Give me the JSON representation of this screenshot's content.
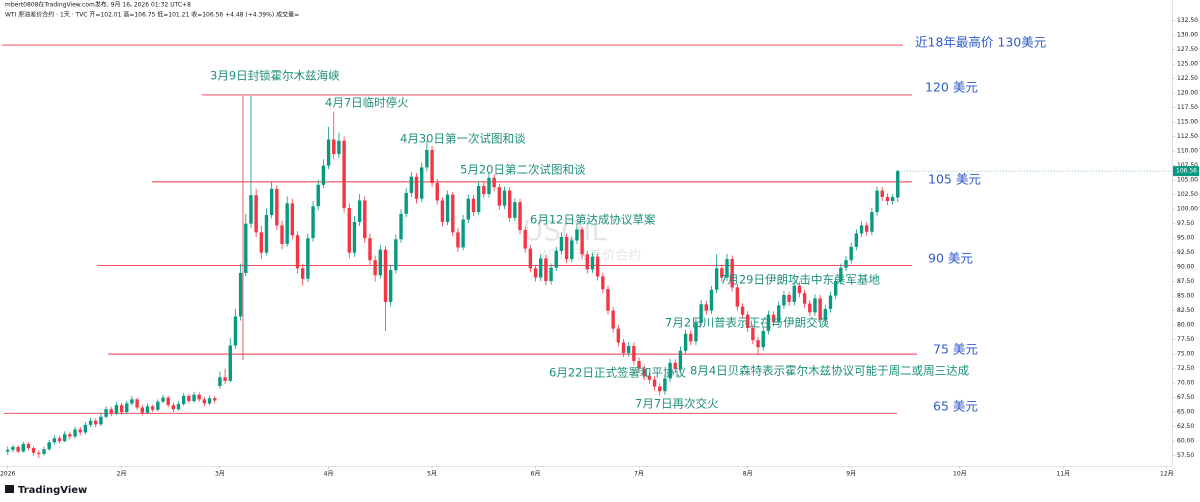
{
  "chart_data": {
    "type": "candlestick",
    "header_line1": "mbert0808在TradingView.com发布, 9月 16, 2026 01:32 UTC+8",
    "header_line2": "WTI 原油差价合约 · 1天 · TVC  开=102.01 高=106.75 低=101.21 收=106.56 +4.48 (+4.39%)  成交量=",
    "watermark_symbol": "USOIL",
    "watermark_name": "WTI原油差价合约",
    "brand": "TradingView",
    "up_color": "#089981",
    "down_color": "#f23645",
    "grid": false,
    "xlim": [
      -1.5,
      225
    ],
    "xticks": [
      {
        "value": 0,
        "label": "2026"
      },
      {
        "value": 22,
        "label": "2月"
      },
      {
        "value": 41,
        "label": "3月"
      },
      {
        "value": 62,
        "label": "4月"
      },
      {
        "value": 82,
        "label": "5月"
      },
      {
        "value": 102,
        "label": "6月"
      },
      {
        "value": 122,
        "label": "7月"
      },
      {
        "value": 143,
        "label": "8月"
      },
      {
        "value": 163,
        "label": "9月"
      },
      {
        "value": 184,
        "label": "10月"
      },
      {
        "value": 204,
        "label": "11月"
      },
      {
        "value": 224,
        "label": "12月"
      }
    ],
    "ylim": [
      56.4,
      135.2
    ],
    "yticks": [
      {
        "value": 57.5,
        "label": "57.50"
      },
      {
        "value": 60,
        "label": "60.00"
      },
      {
        "value": 62.5,
        "label": "62.50"
      },
      {
        "value": 65,
        "label": "65.00"
      },
      {
        "value": 67.5,
        "label": "67.50"
      },
      {
        "value": 70,
        "label": "70.00"
      },
      {
        "value": 72.5,
        "label": "72.50"
      },
      {
        "value": 75,
        "label": "75.00"
      },
      {
        "value": 77.5,
        "label": "77.50"
      },
      {
        "value": 80,
        "label": "80.00"
      },
      {
        "value": 82.5,
        "label": "82.50"
      },
      {
        "value": 85,
        "label": "85.00"
      },
      {
        "value": 87.5,
        "label": "87.50"
      },
      {
        "value": 90,
        "label": "90.00"
      },
      {
        "value": 92.5,
        "label": "92.50"
      },
      {
        "value": 95,
        "label": "95.00"
      },
      {
        "value": 97.5,
        "label": "97.50"
      },
      {
        "value": 100,
        "label": "100.00"
      },
      {
        "value": 102.5,
        "label": "102.50"
      },
      {
        "value": 105,
        "label": "105.00"
      },
      {
        "value": 107.5,
        "label": "107.50"
      },
      {
        "value": 110,
        "label": "110.00"
      },
      {
        "value": 112.5,
        "label": "112.50"
      },
      {
        "value": 115,
        "label": "115.00"
      },
      {
        "value": 117.5,
        "label": "117.50"
      },
      {
        "value": 120,
        "label": "120.00"
      },
      {
        "value": 122.5,
        "label": "122.50"
      },
      {
        "value": 125,
        "label": "125.00"
      },
      {
        "value": 127.5,
        "label": "127.50"
      },
      {
        "value": 130,
        "label": "130.00"
      },
      {
        "value": 132.5,
        "label": "132.50"
      }
    ],
    "levels": [
      {
        "value": 128.3,
        "label": "近18年最高价 130美元"
      },
      {
        "value": 119.7,
        "label": "120 美元"
      },
      {
        "value": 104.7,
        "label": "105 美元"
      },
      {
        "value": 90.3,
        "label": "90 美元"
      },
      {
        "value": 75,
        "label": "75 美元"
      },
      {
        "value": 64.8,
        "label": "65 美元"
      }
    ],
    "annotations": [
      "3月9日封锁霍尔木兹海峡",
      "4月7日临时停火",
      "4月30日第一次试图和谈",
      "5月20日第二次试图和谈",
      "6月12日第达成协议草案",
      "7月29日伊朗攻击中东美军基地",
      "7月2日川普表示正在与伊朗交谈",
      "6月22日正式签署和平协议",
      "8月4日贝森特表示霍尔木兹协议可能于周二或周三达成",
      "7月7日再次交火"
    ],
    "ohlc": [
      [
        58.2,
        59.1,
        57.6,
        58.5
      ],
      [
        58.5,
        59.4,
        58.1,
        59
      ],
      [
        59,
        59.3,
        57.9,
        58.2
      ],
      [
        58.2,
        59.9,
        58,
        59.5
      ],
      [
        59.5,
        59.8,
        58.4,
        58.8
      ],
      [
        58.8,
        59.1,
        57.5,
        58
      ],
      [
        58,
        58.4,
        57.1,
        57.8
      ],
      [
        57.8,
        59,
        57.5,
        58.6
      ],
      [
        58.6,
        60.2,
        58.3,
        59.8
      ],
      [
        59.8,
        61,
        59.4,
        60.5
      ],
      [
        60.5,
        60.9,
        59.6,
        60
      ],
      [
        60,
        61.7,
        59.8,
        61.2
      ],
      [
        61.2,
        61.6,
        60.3,
        60.8
      ],
      [
        60.8,
        62.5,
        60.5,
        62
      ],
      [
        62,
        62.4,
        61,
        61.5
      ],
      [
        61.5,
        63.3,
        61.2,
        62.8
      ],
      [
        62.8,
        64,
        62.4,
        63.5
      ],
      [
        63.5,
        63.9,
        62.4,
        62.9
      ],
      [
        62.9,
        64.8,
        62.6,
        64.2
      ],
      [
        64.2,
        66,
        63.9,
        65.5
      ],
      [
        65.5,
        65.9,
        64.3,
        64.8
      ],
      [
        64.8,
        66.8,
        64.5,
        66.2
      ],
      [
        66.2,
        66.6,
        64.6,
        65
      ],
      [
        65,
        67,
        64.7,
        66.5
      ],
      [
        66.5,
        67.8,
        66.1,
        67.2
      ],
      [
        67.2,
        67.5,
        65.4,
        65.8
      ],
      [
        65.8,
        66.2,
        64.4,
        64.9
      ],
      [
        64.9,
        66.5,
        64.6,
        66
      ],
      [
        66,
        66.3,
        65,
        65.4
      ],
      [
        65.4,
        67.2,
        65.1,
        66.8
      ],
      [
        66.8,
        68,
        66.5,
        67.5
      ],
      [
        67.5,
        67.8,
        65.8,
        66.2
      ],
      [
        66.2,
        66.6,
        65,
        65.5
      ],
      [
        65.5,
        66.9,
        65.2,
        66.4
      ],
      [
        66.4,
        68.3,
        66.1,
        67.8
      ],
      [
        67.8,
        68.1,
        66.5,
        66.9
      ],
      [
        66.9,
        68.5,
        66.6,
        68
      ],
      [
        68,
        68.4,
        66.8,
        67.2
      ],
      [
        67.2,
        67.6,
        66,
        66.5
      ],
      [
        66.5,
        67.9,
        66.2,
        67.4
      ],
      [
        67.4,
        67.8,
        66.5,
        67
      ],
      [
        69.5,
        72,
        69,
        71
      ],
      [
        71,
        72.5,
        69.8,
        70.4
      ],
      [
        70.4,
        77.8,
        70.1,
        76.5
      ],
      [
        76.5,
        82.8,
        75.9,
        81.5
      ],
      [
        81.5,
        90.6,
        80.8,
        89
      ],
      [
        89,
        99.2,
        88.5,
        97.5
      ],
      [
        97.5,
        119.5,
        96.8,
        102.4
      ],
      [
        102.4,
        103.5,
        95.2,
        96
      ],
      [
        96,
        97.1,
        91.4,
        92.5
      ],
      [
        92.5,
        100.1,
        92,
        99
      ],
      [
        99,
        104.8,
        98.4,
        103.5
      ],
      [
        103.5,
        104.1,
        96.4,
        97.2
      ],
      [
        97.2,
        98,
        93.1,
        94
      ],
      [
        94,
        102.2,
        93.5,
        101
      ],
      [
        101,
        101.8,
        94.8,
        95.5
      ],
      [
        95.5,
        96.2,
        88.9,
        89.8
      ],
      [
        89.8,
        90.6,
        86.8,
        88
      ],
      [
        88,
        95.8,
        87.4,
        95
      ],
      [
        95,
        101.4,
        94.4,
        100.5
      ],
      [
        100.5,
        105.1,
        99.8,
        104.2
      ],
      [
        104.2,
        108.6,
        103.6,
        107.5
      ],
      [
        107.5,
        114.2,
        106.9,
        112
      ],
      [
        112,
        116.8,
        108.6,
        109.5
      ],
      [
        109.5,
        113.2,
        108.8,
        111.8
      ],
      [
        111.8,
        112.5,
        99.4,
        100.2
      ],
      [
        100.2,
        101,
        91.5,
        92.5
      ],
      [
        92.5,
        98.8,
        91.8,
        97.8
      ],
      [
        97.8,
        102.6,
        97.1,
        101.5
      ],
      [
        101.5,
        102.2,
        94.2,
        95
      ],
      [
        95,
        95.8,
        90.4,
        91.2
      ],
      [
        91.2,
        92,
        87.5,
        88.6
      ],
      [
        88.6,
        93.8,
        88,
        93
      ],
      [
        93,
        93.6,
        79,
        84
      ],
      [
        84,
        90.4,
        83.2,
        89.5
      ],
      [
        89.5,
        95.6,
        88.9,
        94.8
      ],
      [
        94.8,
        100,
        94.2,
        99.2
      ],
      [
        99.2,
        103.6,
        98.6,
        102.8
      ],
      [
        102.8,
        106.4,
        102.1,
        105.6
      ],
      [
        105.6,
        106.2,
        101,
        101.8
      ],
      [
        101.8,
        108,
        101.2,
        107.2
      ],
      [
        107.2,
        111.8,
        106.5,
        110.2
      ],
      [
        110.2,
        110.9,
        103.8,
        104.5
      ],
      [
        104.5,
        105.2,
        100.8,
        101.5
      ],
      [
        101.5,
        102.1,
        97,
        97.8
      ],
      [
        97.8,
        103.2,
        97.2,
        102.5
      ],
      [
        102.5,
        103,
        95.3,
        96
      ],
      [
        96,
        96.7,
        92.6,
        93.4
      ],
      [
        93.4,
        99,
        92.9,
        98.2
      ],
      [
        98.2,
        102.5,
        97.6,
        101.8
      ],
      [
        101.8,
        102.4,
        98.8,
        99.5
      ],
      [
        99.5,
        104.8,
        99,
        104
      ],
      [
        104,
        104.6,
        101.9,
        102.6
      ],
      [
        102.6,
        106.2,
        102,
        105.4
      ],
      [
        105.4,
        106,
        103.1,
        103.8
      ],
      [
        103.8,
        104.4,
        99.9,
        100.6
      ],
      [
        100.6,
        103.9,
        100,
        103.2
      ],
      [
        103.2,
        103.8,
        97.8,
        98.5
      ],
      [
        98.5,
        101.9,
        97.9,
        101.2
      ],
      [
        101.2,
        101.8,
        95.7,
        96.4
      ],
      [
        96.4,
        97,
        92.5,
        93.2
      ],
      [
        93.2,
        93.8,
        89.1,
        89.8
      ],
      [
        89.8,
        90.4,
        87.5,
        88.2
      ],
      [
        88.2,
        92.2,
        87.6,
        91.5
      ],
      [
        91.5,
        92.1,
        86.9,
        87.6
      ],
      [
        87.6,
        90.6,
        87,
        89.9
      ],
      [
        89.9,
        93.5,
        89.3,
        92.8
      ],
      [
        92.8,
        96,
        92.2,
        95.2
      ],
      [
        95.2,
        95.8,
        90.7,
        91.4
      ],
      [
        91.4,
        95.3,
        90.8,
        94.6
      ],
      [
        94.6,
        97.2,
        94,
        96.5
      ],
      [
        96.5,
        97,
        91.5,
        92.2
      ],
      [
        92.2,
        92.8,
        88.9,
        89.6
      ],
      [
        89.6,
        92.5,
        89,
        91.8
      ],
      [
        91.8,
        92.4,
        87.7,
        88.4
      ],
      [
        88.4,
        89,
        85.5,
        86.2
      ],
      [
        86.2,
        86.8,
        81.8,
        82.5
      ],
      [
        82.5,
        83.1,
        78.7,
        79.4
      ],
      [
        79.4,
        80,
        76.3,
        77
      ],
      [
        77,
        77.6,
        74.5,
        75.2
      ],
      [
        75.2,
        77.1,
        74.6,
        76.4
      ],
      [
        76.4,
        77,
        73.1,
        73.8
      ],
      [
        73.8,
        74.4,
        71.8,
        72.5
      ],
      [
        72.5,
        73.1,
        70.5,
        71.2
      ],
      [
        71.2,
        71.8,
        69.9,
        70.6
      ],
      [
        70.6,
        71.2,
        68.7,
        69.4
      ],
      [
        69.4,
        70,
        67.9,
        68.6
      ],
      [
        68.6,
        71.5,
        68,
        70.8
      ],
      [
        70.8,
        74.2,
        70.2,
        73.5
      ],
      [
        73.5,
        74.1,
        71.7,
        72.4
      ],
      [
        72.4,
        76.3,
        71.8,
        75.6
      ],
      [
        75.6,
        79.2,
        75,
        78.5
      ],
      [
        78.5,
        79.1,
        76.5,
        77.2
      ],
      [
        77.2,
        81.1,
        76.6,
        80.4
      ],
      [
        80.4,
        84.3,
        79.8,
        83.6
      ],
      [
        83.6,
        84.2,
        81.8,
        82.5
      ],
      [
        82.5,
        86.8,
        81.9,
        86.1
      ],
      [
        86.1,
        92.2,
        85.5,
        89.8
      ],
      [
        89.8,
        90.4,
        87.5,
        88.2
      ],
      [
        88.2,
        92.3,
        87.6,
        91.4
      ],
      [
        91.4,
        92,
        85.8,
        86.5
      ],
      [
        86.5,
        87.1,
        82.5,
        83.2
      ],
      [
        83.2,
        83.8,
        81.1,
        81.8
      ],
      [
        81.8,
        82.4,
        78.8,
        79.5
      ],
      [
        79.5,
        80.1,
        76.7,
        77.4
      ],
      [
        77.4,
        78,
        74.8,
        76.2
      ],
      [
        76.2,
        79.7,
        75.6,
        79
      ],
      [
        79,
        82.5,
        78.4,
        81.8
      ],
      [
        81.8,
        82.4,
        79.8,
        80.5
      ],
      [
        80.5,
        84.1,
        79.9,
        83.4
      ],
      [
        83.4,
        85.9,
        82.8,
        85.2
      ],
      [
        85.2,
        85.8,
        83.3,
        84
      ],
      [
        84,
        87.5,
        83.4,
        86.8
      ],
      [
        86.8,
        87.4,
        84.8,
        85.5
      ],
      [
        85.5,
        86.1,
        83,
        83.7
      ],
      [
        83.7,
        84.3,
        81.5,
        82.2
      ],
      [
        82.2,
        85.3,
        81.6,
        84.6
      ],
      [
        84.6,
        85.2,
        80.2,
        80.9
      ],
      [
        80.9,
        83.5,
        80.3,
        82.8
      ],
      [
        82.8,
        85.8,
        82.2,
        85.1
      ],
      [
        85.1,
        88.3,
        84.5,
        87.6
      ],
      [
        87.6,
        90.6,
        87,
        89.9
      ],
      [
        89.9,
        91.9,
        89.3,
        91.2
      ],
      [
        91.2,
        94.2,
        90.6,
        93.5
      ],
      [
        93.5,
        96.5,
        92.9,
        95.8
      ],
      [
        95.8,
        97.9,
        95.2,
        97.2
      ],
      [
        97.2,
        97.8,
        95.4,
        96.1
      ],
      [
        96.1,
        100.2,
        95.5,
        99.5
      ],
      [
        99.5,
        103.9,
        98.9,
        103.2
      ],
      [
        103.2,
        103.8,
        101.4,
        102.1
      ],
      [
        102.1,
        102.7,
        100.7,
        101.4
      ],
      [
        101.4,
        102.6,
        100.8,
        102.08
      ],
      [
        102.01,
        106.75,
        101.21,
        106.56
      ]
    ]
  }
}
